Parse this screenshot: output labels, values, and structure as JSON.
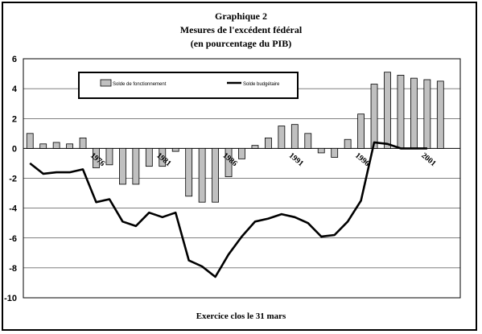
{
  "chart_data": {
    "type": "bar+line",
    "title": "Graphique 2",
    "subtitle": "Mesures de l'excédent fédéral",
    "subtitle2": "(en pourcentage du PIB)",
    "xlabel": "Exercice clos le 31 mars",
    "ylabel": "",
    "ylim": [
      -10,
      6
    ],
    "yticks": [
      "6",
      "4",
      "2",
      "0",
      "-2",
      "-4",
      "-6",
      "-8",
      "-10"
    ],
    "grid": true,
    "legend_position": "top-left",
    "x": [
      1971,
      1972,
      1973,
      1974,
      1975,
      1976,
      1977,
      1978,
      1979,
      1980,
      1981,
      1982,
      1983,
      1984,
      1985,
      1986,
      1987,
      1988,
      1989,
      1990,
      1991,
      1992,
      1993,
      1994,
      1995,
      1996,
      1997,
      1998,
      1999,
      2000,
      2001,
      2002,
      2003
    ],
    "xtick_labels": [
      {
        "year": 1976,
        "label": "1976"
      },
      {
        "year": 1981,
        "label": "1981"
      },
      {
        "year": 1986,
        "label": "1986"
      },
      {
        "year": 1991,
        "label": "1991"
      },
      {
        "year": 1996,
        "label": "1996"
      },
      {
        "year": 2001,
        "label": "2001"
      }
    ],
    "series": [
      {
        "name": "Solde de fonctionnement",
        "type": "bar",
        "color": "#c0c0c0",
        "values": [
          1.0,
          0.3,
          0.4,
          0.3,
          0.7,
          -1.3,
          -1.1,
          -2.4,
          -2.4,
          -1.2,
          -1.2,
          -0.2,
          -3.2,
          -3.6,
          -3.6,
          -1.9,
          -0.7,
          0.2,
          0.7,
          1.5,
          1.6,
          1.0,
          -0.3,
          -0.6,
          0.6,
          2.3,
          4.3,
          5.1,
          4.9,
          4.7,
          4.6,
          4.5,
          0
        ]
      },
      {
        "name": "Solde budgétaire",
        "type": "line",
        "color": "#000000",
        "values": [
          -1.0,
          -1.7,
          -1.6,
          -1.6,
          -1.4,
          -3.6,
          -3.4,
          -4.9,
          -5.2,
          -4.3,
          -4.6,
          -4.3,
          -7.5,
          -7.9,
          -8.6,
          -7.1,
          -5.9,
          -4.9,
          -4.7,
          -4.4,
          -4.6,
          -5.0,
          -5.9,
          -5.8,
          -4.9,
          -3.5,
          0.4,
          0.3,
          0.0,
          0.0,
          0.0,
          null,
          null
        ]
      }
    ]
  }
}
